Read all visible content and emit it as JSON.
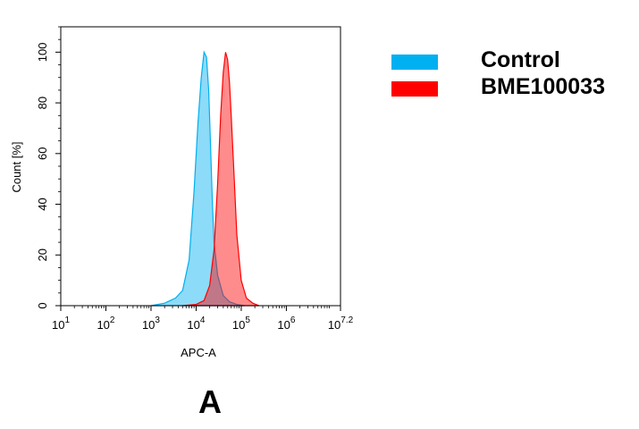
{
  "chart_data": {
    "type": "area",
    "xlabel": "APC-A",
    "ylabel": "Count [%]",
    "x_scale": "log",
    "xlim": [
      10,
      15848932
    ],
    "ylim": [
      0,
      110
    ],
    "x_ticks": [
      {
        "base": "10",
        "exp": "1",
        "value": 10
      },
      {
        "base": "10",
        "exp": "2",
        "value": 100
      },
      {
        "base": "10",
        "exp": "3",
        "value": 1000
      },
      {
        "base": "10",
        "exp": "4",
        "value": 10000
      },
      {
        "base": "10",
        "exp": "5",
        "value": 100000
      },
      {
        "base": "10",
        "exp": "6",
        "value": 1000000
      },
      {
        "base": "10",
        "exp": "7.2",
        "value": 15848932
      }
    ],
    "y_ticks": [
      "0",
      "20",
      "40",
      "60",
      "80",
      "100"
    ],
    "y_tick_values": [
      0,
      20,
      40,
      60,
      80,
      100
    ],
    "series": [
      {
        "name": "Control",
        "color": "#00b0f0",
        "x": [
          1000,
          2000,
          3500,
          5000,
          7000,
          9000,
          11000,
          13000,
          15000,
          17000,
          19000,
          21000,
          23000,
          25000,
          30000,
          40000,
          55000,
          80000,
          120000
        ],
        "y": [
          0,
          1,
          3,
          6,
          18,
          45,
          72,
          90,
          100,
          98,
          85,
          62,
          40,
          25,
          12,
          4,
          1.5,
          0.5,
          0
        ]
      },
      {
        "name": "BME100033",
        "color": "#ff0000",
        "x": [
          5000,
          10000,
          15000,
          20000,
          25000,
          30000,
          35000,
          40000,
          45000,
          50000,
          55000,
          60000,
          70000,
          80000,
          100000,
          130000,
          180000,
          250000
        ],
        "y": [
          0,
          0.5,
          2,
          8,
          22,
          48,
          75,
          92,
          100,
          97,
          88,
          75,
          50,
          28,
          10,
          3,
          1,
          0
        ]
      }
    ],
    "legend": {
      "position": "right",
      "entries": [
        "Control",
        "BME100033"
      ]
    },
    "grid": false
  },
  "panel_label": "A"
}
